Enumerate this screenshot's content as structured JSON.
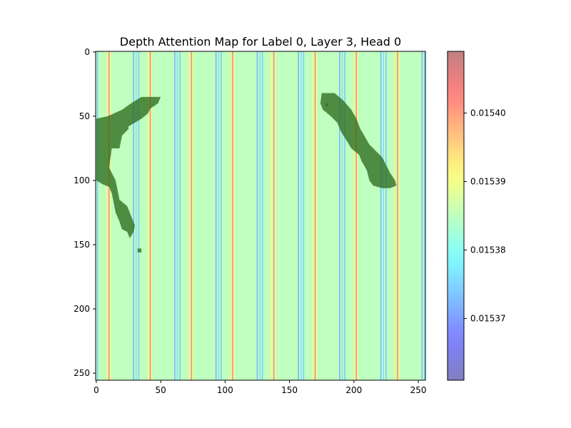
{
  "chart_data": {
    "type": "heatmap",
    "title": "Depth Attention Map for Label 0, Layer 3, Head 0",
    "xlabel": "",
    "ylabel": "",
    "xlim": [
      0,
      255
    ],
    "ylim": [
      255,
      0
    ],
    "x_ticks": [
      0,
      50,
      100,
      150,
      200,
      250
    ],
    "y_ticks": [
      0,
      50,
      100,
      150,
      200,
      250
    ],
    "grid": false,
    "colormap": "jet",
    "alpha": 0.5,
    "base_value": 0.015385,
    "colorbar": {
      "range": [
        0.015361,
        0.015409
      ],
      "ticks": [
        0.01537,
        0.01538,
        0.01539,
        0.0154
      ],
      "tick_labels": [
        "0.01537",
        "0.01538",
        "0.01539",
        "0.01540"
      ]
    },
    "stripe_period_x": 32,
    "stripes": [
      {
        "offset": 1,
        "value": 0.015374
      },
      {
        "offset": 8,
        "value": 0.015392
      },
      {
        "offset": 10,
        "value": 0.015402
      },
      {
        "offset": 11,
        "value": 0.01539
      },
      {
        "offset": 29,
        "value": 0.015372
      },
      {
        "offset": 31,
        "value": 0.015376
      }
    ],
    "overlay_mask": {
      "color": "#2e6b1f",
      "regions": [
        {
          "name": "left-shape",
          "outline": [
            [
              0,
              52
            ],
            [
              9,
              50
            ],
            [
              20,
              45
            ],
            [
              27,
              40
            ],
            [
              35,
              35
            ],
            [
              50,
              35
            ],
            [
              48,
              40
            ],
            [
              42,
              44
            ],
            [
              40,
              48
            ],
            [
              35,
              52
            ],
            [
              25,
              58
            ],
            [
              25,
              60
            ],
            [
              20,
              65
            ],
            [
              18,
              75
            ],
            [
              12,
              75
            ],
            [
              10,
              90
            ],
            [
              15,
              100
            ],
            [
              18,
              115
            ],
            [
              24,
              120
            ],
            [
              26,
              125
            ],
            [
              30,
              135
            ],
            [
              29,
              140
            ],
            [
              26,
              145
            ],
            [
              24,
              140
            ],
            [
              20,
              138
            ],
            [
              18,
              132
            ],
            [
              15,
              125
            ],
            [
              12,
              110
            ],
            [
              10,
              105
            ],
            [
              5,
              103
            ],
            [
              0,
              100
            ]
          ]
        },
        {
          "name": "left-speckle",
          "outline": [
            [
              32,
              153
            ],
            [
              35,
              153
            ],
            [
              35,
              156
            ],
            [
              32,
              156
            ]
          ]
        },
        {
          "name": "right-shape",
          "outline": [
            [
              175,
              32
            ],
            [
              185,
              32
            ],
            [
              192,
              38
            ],
            [
              198,
              45
            ],
            [
              202,
              52
            ],
            [
              205,
              60
            ],
            [
              208,
              65
            ],
            [
              212,
              72
            ],
            [
              218,
              78
            ],
            [
              222,
              82
            ],
            [
              225,
              88
            ],
            [
              228,
              94
            ],
            [
              232,
              100
            ],
            [
              233,
              104
            ],
            [
              228,
              106
            ],
            [
              222,
              106
            ],
            [
              215,
              104
            ],
            [
              212,
              100
            ],
            [
              210,
              92
            ],
            [
              206,
              85
            ],
            [
              204,
              80
            ],
            [
              198,
              75
            ],
            [
              195,
              70
            ],
            [
              190,
              62
            ],
            [
              187,
              55
            ],
            [
              182,
              50
            ],
            [
              176,
              45
            ],
            [
              174,
              40
            ]
          ]
        },
        {
          "name": "right-speckle",
          "outline": [
            [
              178,
              40
            ],
            [
              180,
              40
            ],
            [
              180,
              42
            ],
            [
              178,
              42
            ]
          ]
        }
      ]
    }
  }
}
